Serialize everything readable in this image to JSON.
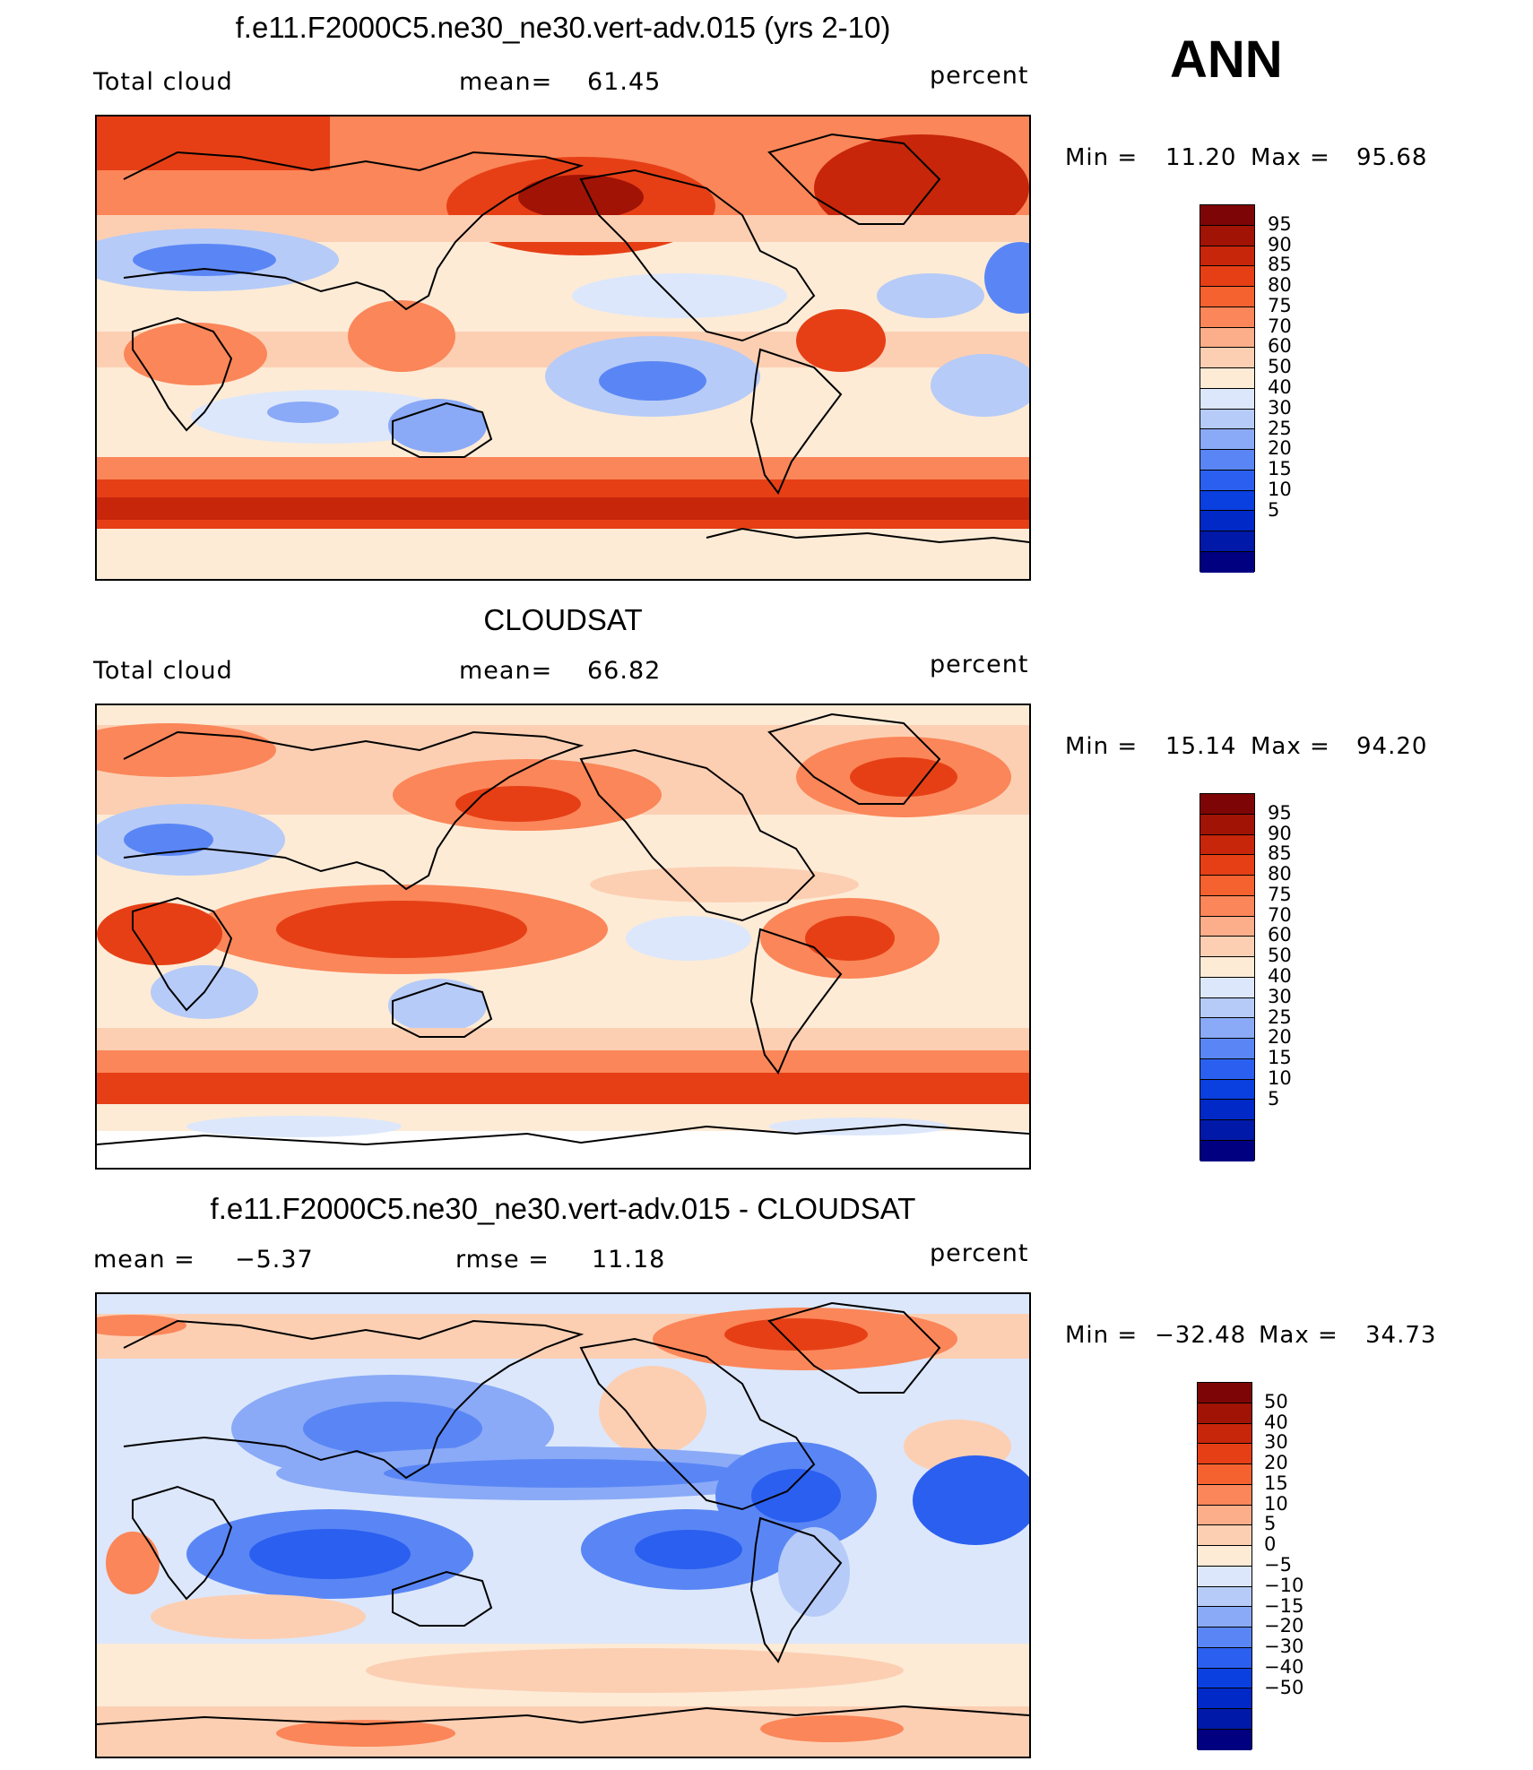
{
  "season": "ANN",
  "colors": {
    "abs": [
      "#000080",
      "#0019a8",
      "#0029c7",
      "#0a3fe0",
      "#2b5ff0",
      "#5a86f5",
      "#8aaaf7",
      "#b6cbf8",
      "#dce7fb",
      "#fdebd6",
      "#fccfb3",
      "#fcae8a",
      "#fb8659",
      "#f5612f",
      "#e63f16",
      "#c7260a",
      "#a11305",
      "#7e0505"
    ],
    "diff": [
      "#000080",
      "#0019a8",
      "#0029c7",
      "#0a3fe0",
      "#2b5ff0",
      "#5a86f5",
      "#8aaaf7",
      "#b6cbf8",
      "#dce7fb",
      "#fdebd6",
      "#fccfb3",
      "#fcae8a",
      "#fb8659",
      "#f5612f",
      "#e63f16",
      "#c7260a",
      "#a11305",
      "#7e0505"
    ]
  },
  "panels": [
    {
      "title": "f.e11.F2000C5.ne30_ne30.vert-adv.015 (yrs 2-10)",
      "left_label": "Total cloud",
      "mid_label": "mean=",
      "mid_value": "61.45",
      "units": "percent",
      "min_label": "Min =",
      "min_value": "11.20",
      "max_label": "Max =",
      "max_value": "95.68",
      "levels": [
        "95",
        "90",
        "85",
        "80",
        "75",
        "70",
        "60",
        "50",
        "40",
        "30",
        "25",
        "20",
        "15",
        "10",
        "5"
      ]
    },
    {
      "title": "CLOUDSAT",
      "left_label": "Total cloud",
      "mid_label": "mean=",
      "mid_value": "66.82",
      "units": "percent",
      "min_label": "Min =",
      "min_value": "15.14",
      "max_label": "Max =",
      "max_value": "94.20",
      "levels": [
        "95",
        "90",
        "85",
        "80",
        "75",
        "70",
        "60",
        "50",
        "40",
        "30",
        "25",
        "20",
        "15",
        "10",
        "5"
      ]
    },
    {
      "title": "f.e11.F2000C5.ne30_ne30.vert-adv.015 - CLOUDSAT",
      "left_label": "mean =",
      "left_value": "−5.37",
      "mid_label": "rmse =",
      "mid_value": "11.18",
      "units": "percent",
      "min_label": "Min =",
      "min_value": "−32.48",
      "max_label": "Max =",
      "max_value": "34.73",
      "levels": [
        "50",
        "40",
        "30",
        "20",
        "15",
        "10",
        "5",
        "0",
        "−5",
        "−10",
        "−15",
        "−20",
        "−30",
        "−40",
        "−50"
      ]
    }
  ]
}
